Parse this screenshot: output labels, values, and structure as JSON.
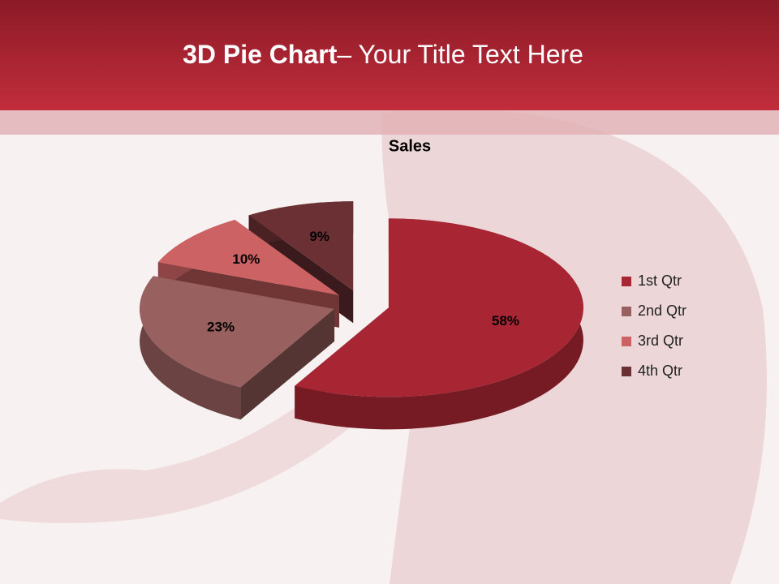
{
  "header": {
    "title_bold": "3D Pie Chart",
    "title_rest": "– Your Title Text Here"
  },
  "chart_data": {
    "type": "pie",
    "title": "Sales",
    "categories": [
      "1st Qtr",
      "2nd Qtr",
      "3rd Qtr",
      "4th Qtr"
    ],
    "values": [
      58,
      23,
      10,
      9
    ],
    "value_labels": [
      "58%",
      "23%",
      "10%",
      "9%"
    ],
    "colors": [
      "#a82634",
      "#98605e",
      "#cc6263",
      "#6a3033"
    ],
    "legend": "right"
  }
}
